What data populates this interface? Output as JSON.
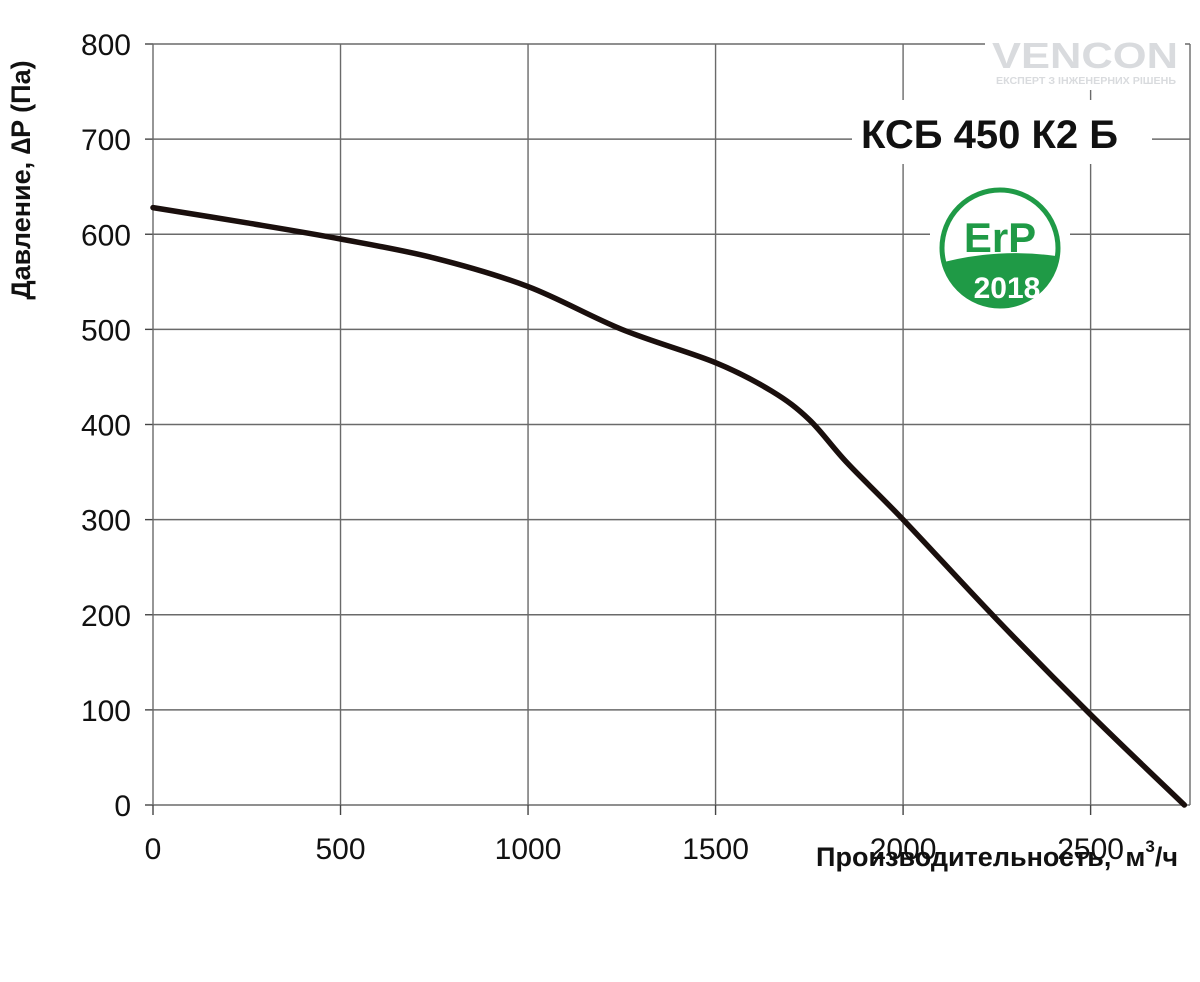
{
  "chart_data": {
    "type": "line",
    "title": "КСБ 450 К2 Б",
    "xlabel": "Производительность,",
    "xlabel_unit": {
      "base": "м",
      "sup": "3",
      "suffix": "/ч"
    },
    "ylabel": "Давление, ∆P (Па)",
    "xlim": [
      0,
      2750
    ],
    "ylim": [
      0,
      800
    ],
    "x_ticks": [
      0,
      500,
      1000,
      1500,
      2000,
      2500
    ],
    "y_ticks": [
      0,
      100,
      200,
      300,
      400,
      500,
      600,
      700,
      800
    ],
    "grid": true,
    "series": [
      {
        "x": [
          0,
          250,
          500,
          750,
          1000,
          1250,
          1500,
          1650,
          1750,
          1850,
          2000,
          2250,
          2500,
          2750
        ],
        "y": [
          628,
          612,
          595,
          575,
          545,
          500,
          465,
          435,
          405,
          360,
          300,
          195,
          95,
          0
        ],
        "color": "#1a0f0d"
      }
    ]
  },
  "badge": {
    "erp_label": "ErP",
    "year": "2018",
    "color": "#1f9a46"
  },
  "logo": {
    "brand": "VENCON",
    "tagline": "ЕКСПЕРТ З ІНЖЕНЕРНИХ РІШЕНЬ",
    "color": "#d9dbde"
  }
}
